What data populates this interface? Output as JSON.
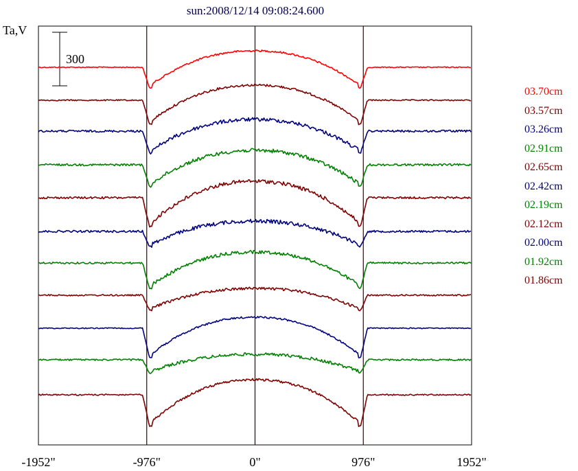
{
  "chart_data": {
    "type": "line",
    "title": "sun:2008/12/14 09:08:24.600",
    "ylabel": "Ta,V",
    "scale_bar_label": "300",
    "x_ticks": [
      {
        "value": -1952,
        "label": "-1952\""
      },
      {
        "value": -976,
        "label": "-976\""
      },
      {
        "value": 0,
        "label": "0\""
      },
      {
        "value": 976,
        "label": "976\""
      },
      {
        "value": 1952,
        "label": "1952\""
      }
    ],
    "xlim": [
      -1952,
      1952
    ],
    "grid": false,
    "legend_position": "right",
    "vertical_markers": [
      -976,
      0,
      976
    ],
    "series": [
      {
        "name": "03.70cm",
        "color": "#ff0000",
        "baseline_y": 98,
        "limb_dip": 30,
        "center_bump": 24,
        "noise": 1.2
      },
      {
        "name": "03.57cm",
        "color": "#800000",
        "baseline_y": 146,
        "limb_dip": 35,
        "center_bump": 22,
        "noise": 1.5
      },
      {
        "name": "03.26cm",
        "color": "#00007f",
        "baseline_y": 191,
        "limb_dip": 32,
        "center_bump": 17,
        "noise": 2.5
      },
      {
        "name": "02.91cm",
        "color": "#008000",
        "baseline_y": 240,
        "limb_dip": 32,
        "center_bump": 21,
        "noise": 2.5
      },
      {
        "name": "02.65cm",
        "color": "#800000",
        "baseline_y": 288,
        "limb_dip": 42,
        "center_bump": 24,
        "noise": 2.5
      },
      {
        "name": "02.42cm",
        "color": "#00007f",
        "baseline_y": 337,
        "limb_dip": 22,
        "center_bump": 15,
        "noise": 2.5
      },
      {
        "name": "02.19cm",
        "color": "#008000",
        "baseline_y": 383,
        "limb_dip": 37,
        "center_bump": 16,
        "noise": 2.2
      },
      {
        "name": "02.12cm",
        "color": "#800000",
        "baseline_y": 430,
        "limb_dip": 22,
        "center_bump": 10,
        "noise": 1.8
      },
      {
        "name": "02.00cm",
        "color": "#00007f",
        "baseline_y": 478,
        "limb_dip": 43,
        "center_bump": 16,
        "noise": 1.2
      },
      {
        "name": "01.92cm",
        "color": "#008000",
        "baseline_y": 524,
        "limb_dip": 19,
        "center_bump": 8,
        "noise": 2.0
      },
      {
        "name": "01.86cm",
        "color": "#800000",
        "baseline_y": 575,
        "limb_dip": 46,
        "center_bump": 22,
        "noise": 1.6
      }
    ]
  }
}
